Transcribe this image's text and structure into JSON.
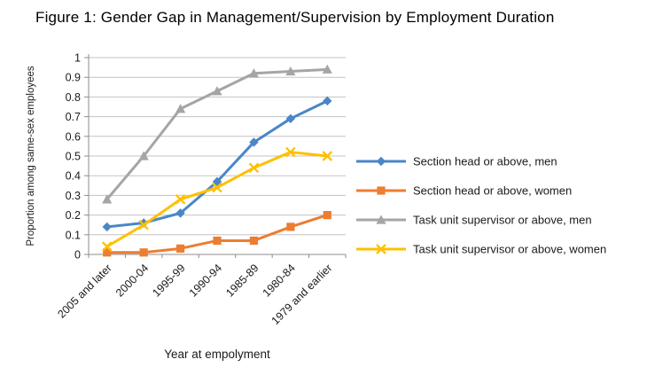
{
  "chart_data": {
    "type": "line",
    "title": "Figure 1: Gender Gap in Management/Supervision by Employment Duration",
    "xlabel": "Year at empolyment",
    "ylabel": "Proportion among same-sex employees",
    "categories": [
      "2005 and later",
      "2000-04",
      "1995-99",
      "1990-94",
      "1985-89",
      "1980-84",
      "1979 and earlier"
    ],
    "series": [
      {
        "name": "Section head or above, men",
        "color": "#4A86C8",
        "marker": "diamond",
        "values": [
          0.14,
          0.16,
          0.21,
          0.37,
          0.57,
          0.69,
          0.78
        ]
      },
      {
        "name": "Section head or above, women",
        "color": "#ED7D31",
        "marker": "square",
        "values": [
          0.01,
          0.01,
          0.03,
          0.07,
          0.07,
          0.14,
          0.2
        ]
      },
      {
        "name": "Task unit supervisor or above, men",
        "color": "#A5A5A5",
        "marker": "triangle",
        "values": [
          0.28,
          0.5,
          0.74,
          0.83,
          0.92,
          0.93,
          0.94
        ]
      },
      {
        "name": "Task unit supervisor or above, women",
        "color": "#FFC000",
        "marker": "x",
        "values": [
          0.04,
          0.15,
          0.28,
          0.34,
          0.44,
          0.52,
          0.5
        ]
      }
    ],
    "ylim": [
      0,
      1
    ],
    "ytick_step": 0.1,
    "ytick_labels": [
      "0",
      "0.1",
      "0.2",
      "0.3",
      "0.4",
      "0.5",
      "0.6",
      "0.7",
      "0.8",
      "0.9",
      "1"
    ],
    "grid": true,
    "legend_position": "right",
    "colors": {
      "grid_line": "#C3C3C3",
      "axis_line": "#8C8C8C",
      "text": "#1a1a1a",
      "background": "#ffffff"
    }
  }
}
